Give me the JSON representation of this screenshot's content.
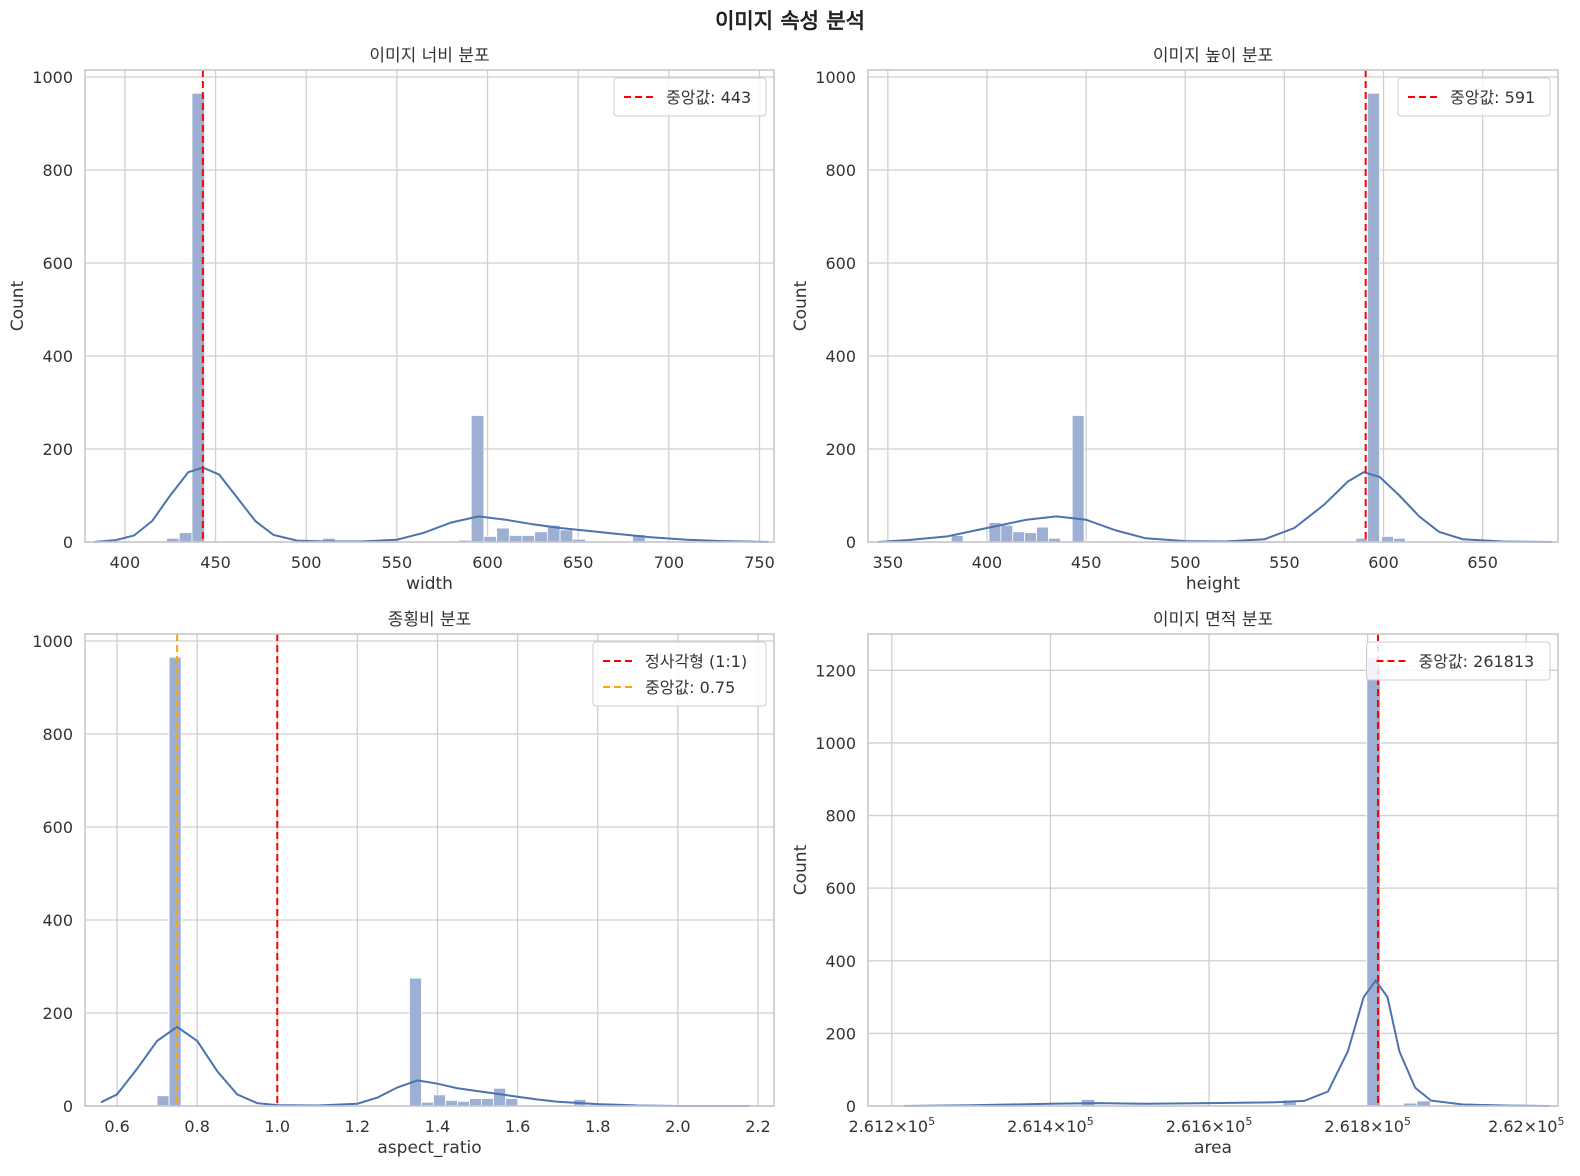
{
  "figure": {
    "title": "이미지 속성 분석"
  },
  "chart_data": [
    {
      "type": "bar",
      "title": "이미지 너비 분포",
      "xlabel": "width",
      "ylabel": "Count",
      "xlim": [
        378,
        758
      ],
      "ylim": [
        0,
        1015
      ],
      "xticks": [
        400,
        450,
        500,
        550,
        600,
        650,
        700,
        750
      ],
      "xtick_labels": [
        "400",
        "450",
        "500",
        "550",
        "600",
        "650",
        "700",
        "750"
      ],
      "yticks": [
        0,
        200,
        400,
        600,
        800,
        1000
      ],
      "ytick_labels": [
        "0",
        "200",
        "400",
        "600",
        "800",
        "1000"
      ],
      "grid": true,
      "legend_position": "top-right",
      "bins": [
        {
          "x0": 423,
          "x1": 430,
          "count": 8
        },
        {
          "x0": 430,
          "x1": 437,
          "count": 20
        },
        {
          "x0": 437,
          "x1": 444,
          "count": 965
        },
        {
          "x0": 509,
          "x1": 516,
          "count": 8
        },
        {
          "x0": 584,
          "x1": 591,
          "count": 4
        },
        {
          "x0": 591,
          "x1": 598,
          "count": 272
        },
        {
          "x0": 598,
          "x1": 605,
          "count": 12
        },
        {
          "x0": 605,
          "x1": 612,
          "count": 30
        },
        {
          "x0": 612,
          "x1": 619,
          "count": 14
        },
        {
          "x0": 619,
          "x1": 626,
          "count": 14
        },
        {
          "x0": 626,
          "x1": 633,
          "count": 22
        },
        {
          "x0": 633,
          "x1": 640,
          "count": 36
        },
        {
          "x0": 640,
          "x1": 647,
          "count": 26
        },
        {
          "x0": 647,
          "x1": 654,
          "count": 6
        },
        {
          "x0": 654,
          "x1": 661,
          "count": 2
        },
        {
          "x0": 680,
          "x1": 687,
          "count": 16
        }
      ],
      "kde": [
        [
          383,
          0
        ],
        [
          395,
          4
        ],
        [
          405,
          14
        ],
        [
          415,
          45
        ],
        [
          425,
          100
        ],
        [
          435,
          150
        ],
        [
          443,
          160
        ],
        [
          452,
          145
        ],
        [
          462,
          95
        ],
        [
          472,
          45
        ],
        [
          482,
          15
        ],
        [
          495,
          3
        ],
        [
          510,
          1
        ],
        [
          530,
          1
        ],
        [
          550,
          5
        ],
        [
          565,
          20
        ],
        [
          580,
          42
        ],
        [
          595,
          55
        ],
        [
          610,
          48
        ],
        [
          625,
          38
        ],
        [
          640,
          30
        ],
        [
          655,
          24
        ],
        [
          670,
          18
        ],
        [
          690,
          10
        ],
        [
          710,
          5
        ],
        [
          730,
          2
        ],
        [
          755,
          0
        ]
      ],
      "vlines": [
        {
          "x": 443,
          "label": "중앙값: 443",
          "color": "#ff0000"
        }
      ]
    },
    {
      "type": "bar",
      "title": "이미지 높이 분포",
      "xlabel": "height",
      "ylabel": "Count",
      "xlim": [
        340,
        688
      ],
      "ylim": [
        0,
        1015
      ],
      "xticks": [
        350,
        400,
        450,
        500,
        550,
        600,
        650
      ],
      "xtick_labels": [
        "350",
        "400",
        "450",
        "500",
        "550",
        "600",
        "650"
      ],
      "yticks": [
        0,
        200,
        400,
        600,
        800,
        1000
      ],
      "ytick_labels": [
        "0",
        "200",
        "400",
        "600",
        "800",
        "1000"
      ],
      "grid": true,
      "legend_position": "top-right",
      "bins": [
        {
          "x0": 348,
          "x1": 354,
          "count": 2
        },
        {
          "x0": 382,
          "x1": 388,
          "count": 14
        },
        {
          "x0": 401,
          "x1": 407,
          "count": 42
        },
        {
          "x0": 407,
          "x1": 413,
          "count": 36
        },
        {
          "x0": 413,
          "x1": 419,
          "count": 22
        },
        {
          "x0": 419,
          "x1": 425,
          "count": 20
        },
        {
          "x0": 425,
          "x1": 431,
          "count": 32
        },
        {
          "x0": 431,
          "x1": 437,
          "count": 8
        },
        {
          "x0": 443,
          "x1": 449,
          "count": 272
        },
        {
          "x0": 508,
          "x1": 514,
          "count": 4
        },
        {
          "x0": 586,
          "x1": 592,
          "count": 8
        },
        {
          "x0": 592,
          "x1": 598,
          "count": 965
        },
        {
          "x0": 599,
          "x1": 605,
          "count": 12
        },
        {
          "x0": 605,
          "x1": 611,
          "count": 8
        }
      ],
      "kde": [
        [
          345,
          0
        ],
        [
          360,
          4
        ],
        [
          380,
          12
        ],
        [
          400,
          30
        ],
        [
          420,
          48
        ],
        [
          435,
          55
        ],
        [
          450,
          48
        ],
        [
          465,
          25
        ],
        [
          480,
          8
        ],
        [
          500,
          2
        ],
        [
          520,
          1
        ],
        [
          540,
          6
        ],
        [
          555,
          30
        ],
        [
          570,
          80
        ],
        [
          582,
          130
        ],
        [
          590,
          150
        ],
        [
          598,
          140
        ],
        [
          608,
          100
        ],
        [
          618,
          55
        ],
        [
          628,
          22
        ],
        [
          640,
          6
        ],
        [
          660,
          1
        ],
        [
          685,
          0
        ]
      ],
      "vlines": [
        {
          "x": 591,
          "label": "중앙값: 591",
          "color": "#ff0000"
        }
      ]
    },
    {
      "type": "bar",
      "title": "종횡비 분포",
      "xlabel": "aspect_ratio",
      "ylabel": "",
      "xlim": [
        0.52,
        2.24
      ],
      "ylim": [
        0,
        1015
      ],
      "xticks": [
        0.6,
        0.8,
        1.0,
        1.2,
        1.4,
        1.6,
        1.8,
        2.0,
        2.2
      ],
      "xtick_labels": [
        "0.6",
        "0.8",
        "1.0",
        "1.2",
        "1.4",
        "1.6",
        "1.8",
        "2.0",
        "2.2"
      ],
      "yticks": [
        0,
        200,
        400,
        600,
        800,
        1000
      ],
      "ytick_labels": [
        "0",
        "200",
        "400",
        "600",
        "800",
        "1000"
      ],
      "grid": true,
      "legend_position": "top-right",
      "bins": [
        {
          "x0": 0.7,
          "x1": 0.73,
          "count": 22
        },
        {
          "x0": 0.73,
          "x1": 0.76,
          "count": 965
        },
        {
          "x0": 1.33,
          "x1": 1.36,
          "count": 275
        },
        {
          "x0": 1.36,
          "x1": 1.39,
          "count": 8
        },
        {
          "x0": 1.39,
          "x1": 1.42,
          "count": 24
        },
        {
          "x0": 1.42,
          "x1": 1.45,
          "count": 12
        },
        {
          "x0": 1.45,
          "x1": 1.48,
          "count": 10
        },
        {
          "x0": 1.48,
          "x1": 1.51,
          "count": 16
        },
        {
          "x0": 1.51,
          "x1": 1.54,
          "count": 16
        },
        {
          "x0": 1.54,
          "x1": 1.57,
          "count": 38
        },
        {
          "x0": 1.57,
          "x1": 1.6,
          "count": 16
        },
        {
          "x0": 1.74,
          "x1": 1.77,
          "count": 14
        }
      ],
      "kde": [
        [
          0.56,
          8
        ],
        [
          0.6,
          25
        ],
        [
          0.65,
          80
        ],
        [
          0.7,
          140
        ],
        [
          0.75,
          170
        ],
        [
          0.8,
          140
        ],
        [
          0.85,
          75
        ],
        [
          0.9,
          25
        ],
        [
          0.95,
          6
        ],
        [
          1.0,
          2
        ],
        [
          1.1,
          1
        ],
        [
          1.2,
          5
        ],
        [
          1.25,
          18
        ],
        [
          1.3,
          40
        ],
        [
          1.35,
          55
        ],
        [
          1.4,
          48
        ],
        [
          1.45,
          38
        ],
        [
          1.5,
          32
        ],
        [
          1.55,
          26
        ],
        [
          1.6,
          20
        ],
        [
          1.65,
          14
        ],
        [
          1.7,
          9
        ],
        [
          1.8,
          4
        ],
        [
          1.9,
          1
        ],
        [
          2.0,
          0
        ],
        [
          2.18,
          0
        ]
      ],
      "vlines": [
        {
          "x": 1.0,
          "label": "정사각형 (1:1)",
          "color": "#ff0000"
        },
        {
          "x": 0.75,
          "label": "중앙값: 0.75",
          "color": "#ffa500"
        }
      ]
    },
    {
      "type": "bar",
      "title": "이미지 면적 분포",
      "xlabel": "area",
      "ylabel": "Count",
      "xlim": [
        261170,
        262040
      ],
      "ylim": [
        0,
        1300
      ],
      "xticks": [
        261200,
        261400,
        261600,
        261800,
        262000
      ],
      "xtick_mantissas": [
        "2.612",
        "2.614",
        "2.616",
        "2.618",
        "2.62"
      ],
      "xtick_times": "×10",
      "xtick_exponent": "5",
      "yticks": [
        0,
        200,
        400,
        600,
        800,
        1000,
        1200
      ],
      "ytick_labels": [
        "0",
        "200",
        "400",
        "600",
        "800",
        "1000",
        "1200"
      ],
      "grid": true,
      "legend_position": "top-right",
      "bins": [
        {
          "x0": 261439,
          "x1": 261456,
          "count": 18
        },
        {
          "x0": 261693,
          "x1": 261710,
          "count": 16
        },
        {
          "x0": 261799,
          "x1": 261816,
          "count": 1235
        },
        {
          "x0": 261845,
          "x1": 261862,
          "count": 8
        },
        {
          "x0": 261862,
          "x1": 261879,
          "count": 14
        }
      ],
      "kde": [
        [
          261215,
          0
        ],
        [
          261300,
          2
        ],
        [
          261400,
          6
        ],
        [
          261460,
          8
        ],
        [
          261520,
          6
        ],
        [
          261600,
          8
        ],
        [
          261680,
          10
        ],
        [
          261720,
          14
        ],
        [
          261750,
          40
        ],
        [
          261775,
          150
        ],
        [
          261795,
          300
        ],
        [
          261810,
          345
        ],
        [
          261825,
          300
        ],
        [
          261840,
          150
        ],
        [
          261860,
          50
        ],
        [
          261880,
          15
        ],
        [
          261920,
          4
        ],
        [
          261980,
          1
        ],
        [
          262030,
          0
        ]
      ],
      "vlines": [
        {
          "x": 261813,
          "label": "중앙값: 261813",
          "color": "#ff0000"
        }
      ]
    }
  ]
}
